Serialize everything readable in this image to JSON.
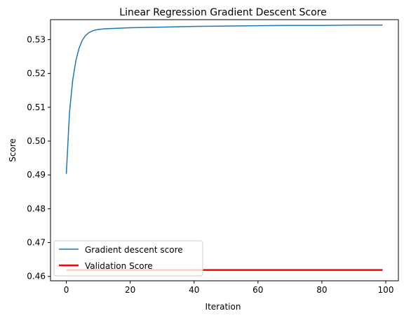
{
  "chart_data": {
    "type": "line",
    "title": "Linear Regression Gradient Descent Score",
    "xlabel": "Iteration",
    "ylabel": "Score",
    "xlim": [
      -4.95,
      103.95
    ],
    "ylim": [
      0.4587,
      0.5359
    ],
    "xticks": [
      0,
      20,
      40,
      60,
      80,
      100
    ],
    "xtick_labels": [
      "0",
      "20",
      "40",
      "60",
      "80",
      "100"
    ],
    "yticks": [
      0.46,
      0.47,
      0.48,
      0.49,
      0.5,
      0.51,
      0.52,
      0.53
    ],
    "ytick_labels": [
      "0.46",
      "0.47",
      "0.48",
      "0.49",
      "0.50",
      "0.51",
      "0.52",
      "0.53"
    ],
    "grid": false,
    "legend_position": "lower-left",
    "series": [
      {
        "name": "Gradient descent score",
        "color": "#1f77b4",
        "x": [
          0,
          1,
          2,
          3,
          4,
          5,
          6,
          7,
          8,
          9,
          10,
          12,
          15,
          20,
          30,
          40,
          50,
          60,
          70,
          80,
          90,
          99
        ],
        "y": [
          0.4903,
          0.5085,
          0.518,
          0.5238,
          0.5275,
          0.5298,
          0.5312,
          0.532,
          0.5325,
          0.5328,
          0.533,
          0.5332,
          0.5333,
          0.5335,
          0.5337,
          0.5339,
          0.534,
          0.5341,
          0.5342,
          0.5342,
          0.5343,
          0.5343
        ]
      },
      {
        "name": "Validation Score",
        "color": "#ff0000",
        "x": [
          0,
          99
        ],
        "y": [
          0.4619,
          0.4619
        ]
      }
    ]
  }
}
